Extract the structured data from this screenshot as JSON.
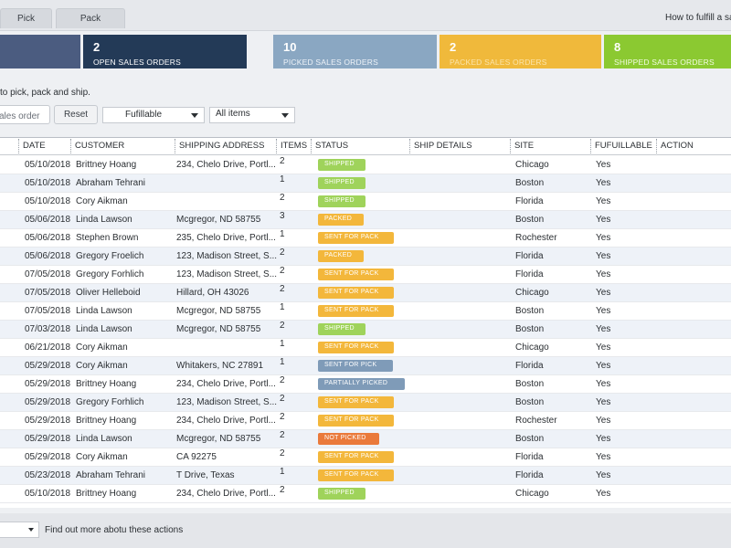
{
  "tabs": [
    {
      "label": "Pick"
    },
    {
      "label": "Pack"
    }
  ],
  "help_link": "How to fulfill a sales order",
  "cards": {
    "total": {
      "count": "",
      "label": ""
    },
    "open": {
      "count": "2",
      "label": "OPEN SALES ORDERS",
      "color": "#233a57"
    },
    "picked": {
      "count": "10",
      "label": "PICKED SALES ORDERS",
      "color": "#8aa7c2"
    },
    "packed": {
      "count": "2",
      "label": "PACKED SALES ORDERS",
      "color": "#f0b93b"
    },
    "shipped": {
      "count": "8",
      "label": "SHIPPED SALES ORDERS",
      "color": "#8bc931"
    }
  },
  "intro_text": "to pick, pack and ship.",
  "filters": {
    "search_value": "ales order",
    "reset_label": "Reset",
    "fulfillable_value": "Fufillable",
    "items_value": "All items"
  },
  "table": {
    "headers": [
      "DATE",
      "CUSTOMER",
      "SHIPPING ADDRESS",
      "ITEMS",
      "STATUS",
      "SHIP DETAILS",
      "SITE",
      "FUFUILLABLE",
      "ACTION"
    ],
    "rows": [
      {
        "date": "05/10/2018",
        "customer": "Brittney Hoang",
        "address": "234, Chelo Drive, Portl...",
        "items": "2",
        "status": "SHIPPED",
        "site": "Chicago",
        "fulfillable": "Yes"
      },
      {
        "date": "05/10/2018",
        "customer": "Abraham Tehrani",
        "address": "",
        "items": "1",
        "status": "SHIPPED",
        "site": "Boston",
        "fulfillable": "Yes"
      },
      {
        "date": "05/10/2018",
        "customer": "Cory Aikman",
        "address": "",
        "items": "2",
        "status": "SHIPPED",
        "site": "Florida",
        "fulfillable": "Yes"
      },
      {
        "date": "05/06/2018",
        "customer": "Linda Lawson",
        "address": "Mcgregor, ND 58755",
        "items": "3",
        "status": "PACKED",
        "site": "Boston",
        "fulfillable": "Yes"
      },
      {
        "date": "05/06/2018",
        "customer": "Stephen Brown",
        "address": "235, Chelo Drive, Portl...",
        "items": "1",
        "status": "SENT FOR PACK",
        "site": "Rochester",
        "fulfillable": "Yes"
      },
      {
        "date": "05/06/2018",
        "customer": "Gregory Froelich",
        "address": "123, Madison Street, S...",
        "items": "2",
        "status": "PACKED",
        "site": "Florida",
        "fulfillable": "Yes"
      },
      {
        "date": "07/05/2018",
        "customer": "Gregory Forhlich",
        "address": "123, Madison Street, S...",
        "items": "2",
        "status": "SENT FOR PACK",
        "site": "Florida",
        "fulfillable": "Yes"
      },
      {
        "date": "07/05/2018",
        "customer": "Oliver Helleboid",
        "address": "Hillard, OH 43026",
        "items": "2",
        "status": "SENT FOR PACK",
        "site": "Chicago",
        "fulfillable": "Yes"
      },
      {
        "date": "07/05/2018",
        "customer": "Linda Lawson",
        "address": "Mcgregor, ND 58755",
        "items": "1",
        "status": "SENT FOR PACK",
        "site": "Boston",
        "fulfillable": "Yes"
      },
      {
        "date": "07/03/2018",
        "customer": "Linda Lawson",
        "address": "Mcgregor, ND 58755",
        "items": "2",
        "status": "SHIPPED",
        "site": "Boston",
        "fulfillable": "Yes"
      },
      {
        "date": "06/21/2018",
        "customer": "Cory Aikman",
        "address": "",
        "items": "1",
        "status": "SENT FOR PACK",
        "site": "Chicago",
        "fulfillable": "Yes"
      },
      {
        "date": "05/29/2018",
        "customer": "Cory Aikman",
        "address": "Whitakers, NC 27891",
        "items": "1",
        "status": "SENT FOR PICK",
        "site": "Florida",
        "fulfillable": "Yes"
      },
      {
        "date": "05/29/2018",
        "customer": "Brittney Hoang",
        "address": "234, Chelo Drive, Portl...",
        "items": "2",
        "status": "PARTIALLY PICKED",
        "site": "Boston",
        "fulfillable": "Yes"
      },
      {
        "date": "05/29/2018",
        "customer": "Gregory Forhlich",
        "address": "123, Madison Street, S...",
        "items": "2",
        "status": "SENT FOR PACK",
        "site": "Boston",
        "fulfillable": "Yes"
      },
      {
        "date": "05/29/2018",
        "customer": "Brittney Hoang",
        "address": "234, Chelo Drive, Portl...",
        "items": "2",
        "status": "SENT FOR PACK",
        "site": "Rochester",
        "fulfillable": "Yes"
      },
      {
        "date": "05/29/2018",
        "customer": "Linda Lawson",
        "address": "Mcgregor, ND 58755",
        "items": "2",
        "status": "NOT PICKED",
        "site": "Boston",
        "fulfillable": "Yes"
      },
      {
        "date": "05/29/2018",
        "customer": "Cory Aikman",
        "address": "CA 92275",
        "items": "2",
        "status": "SENT FOR PACK",
        "site": "Florida",
        "fulfillable": "Yes"
      },
      {
        "date": "05/23/2018",
        "customer": "Abraham Tehrani",
        "address": "T Drive, Texas",
        "items": "1",
        "status": "SENT FOR PACK",
        "site": "Florida",
        "fulfillable": "Yes"
      },
      {
        "date": "05/10/2018",
        "customer": "Brittney Hoang",
        "address": "234, Chelo Drive, Portl...",
        "items": "2",
        "status": "SHIPPED",
        "site": "Chicago",
        "fulfillable": "Yes"
      }
    ]
  },
  "status_colors": {
    "SHIPPED": "#9fd35b",
    "PACKED": "#f3b73b",
    "SENT FOR PACK": "#f3b73b",
    "SENT FOR PICK": "#7f9bb8",
    "PARTIALLY PICKED": "#7f9bb8",
    "NOT PICKED": "#ea7a3b"
  },
  "footer": {
    "link_text": "Find out more abotu these actions"
  }
}
